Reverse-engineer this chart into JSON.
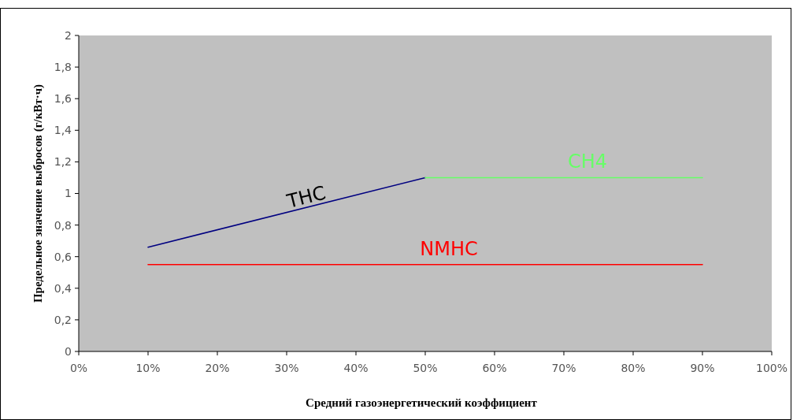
{
  "chart_data": {
    "type": "line",
    "xlabel": "Средний газоэнергетический коэффициент",
    "ylabel": "Предельное значение выбросов (г/кВт·ч)",
    "xlim": [
      0,
      100
    ],
    "ylim": [
      0,
      2
    ],
    "xticks": [
      {
        "value": 0,
        "label": "0%"
      },
      {
        "value": 10,
        "label": "10%"
      },
      {
        "value": 20,
        "label": "20%"
      },
      {
        "value": 30,
        "label": "30%"
      },
      {
        "value": 40,
        "label": "40%"
      },
      {
        "value": 50,
        "label": "50%"
      },
      {
        "value": 60,
        "label": "60%"
      },
      {
        "value": 70,
        "label": "70%"
      },
      {
        "value": 80,
        "label": "80%"
      },
      {
        "value": 90,
        "label": "90%"
      },
      {
        "value": 100,
        "label": "100%"
      }
    ],
    "yticks": [
      0,
      {
        "value": 0.2,
        "label": "0,2"
      },
      {
        "value": 0.4,
        "label": "0,4"
      },
      {
        "value": 0.6,
        "label": "0,6"
      },
      {
        "value": 0.8,
        "label": "0,8"
      },
      1,
      {
        "value": 1.2,
        "label": "1,2"
      },
      {
        "value": 1.4,
        "label": "1,4"
      },
      {
        "value": 1.6,
        "label": "1,6"
      },
      {
        "value": 1.8,
        "label": "1,8"
      },
      2
    ],
    "grid": false,
    "legend": false,
    "marker": "none",
    "line_style": "solid",
    "series": [
      {
        "name": "THC",
        "color": "#000080",
        "x": [
          10,
          50
        ],
        "values": [
          0.66,
          1.1
        ]
      },
      {
        "name": "CH4",
        "color": "#66ff66",
        "x": [
          50,
          90
        ],
        "values": [
          1.1,
          1.1
        ]
      },
      {
        "name": "NMHC",
        "color": "#ff0000",
        "x": [
          10,
          90
        ],
        "values": [
          0.55,
          0.55
        ]
      }
    ]
  }
}
